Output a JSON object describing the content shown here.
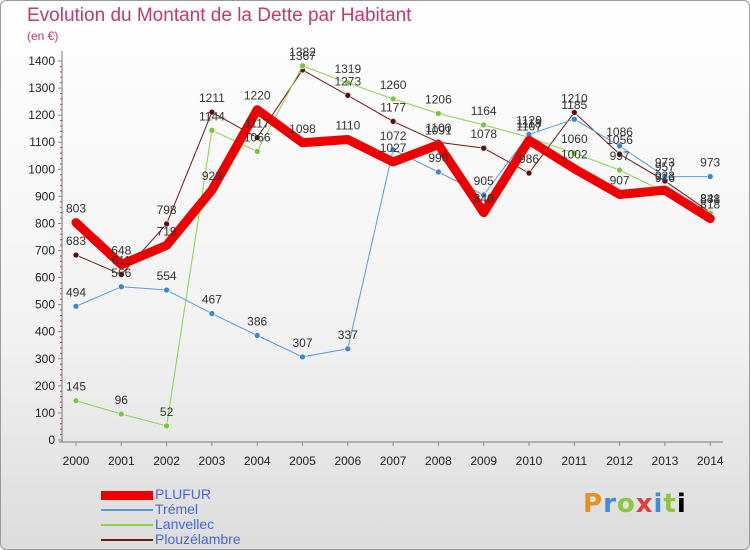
{
  "title": "Evolution du Montant de la Dette par Habitant",
  "subtitle": "(en €)",
  "brand": [
    "P",
    "r",
    "o",
    "x",
    "i",
    "t",
    "i"
  ],
  "chart_data": {
    "type": "line",
    "title": "Evolution du Montant de la Dette par Habitant",
    "subtitle": "(en €)",
    "x": [
      "2000",
      "2001",
      "2002",
      "2003",
      "2004",
      "2005",
      "2006",
      "2007",
      "2008",
      "2009",
      "2010",
      "2011",
      "2012",
      "2013",
      "2014"
    ],
    "ylim": [
      0,
      1400
    ],
    "yticks": [
      0,
      100,
      200,
      300,
      400,
      500,
      600,
      700,
      800,
      900,
      1000,
      1100,
      1200,
      1300,
      1400
    ],
    "grid": false,
    "legend": "bottom-left",
    "series": [
      {
        "name": "Plouzélambre",
        "color": "#6b1a1a",
        "width": 1,
        "values": [
          683,
          611,
          798,
          1211,
          1117,
          1367,
          1273,
          1177,
          1100,
          1078,
          986,
          1210,
          1056,
          957,
          841
        ]
      },
      {
        "name": "Lanvellec",
        "color": "#8cd04c",
        "width": 1,
        "values": [
          145,
          96,
          52,
          1144,
          1066,
          1382,
          1319,
          1260,
          1206,
          1164,
          1118,
          1060,
          997,
          916,
          838
        ]
      },
      {
        "name": "Trémel",
        "color": "#5c9ad6",
        "width": 1,
        "values": [
          494,
          566,
          554,
          467,
          386,
          307,
          337,
          1072,
          990,
          905,
          1129,
          1185,
          1086,
          973,
          973
        ]
      },
      {
        "name": "PLUFUR",
        "color": "#ee0000",
        "width": 9,
        "values": [
          803,
          648,
          719,
          923,
          1220,
          1098,
          1110,
          1027,
          1091,
          840,
          1107,
          1002,
          907,
          923,
          818
        ]
      }
    ]
  },
  "legend_order": [
    "PLUFUR",
    "Trémel",
    "Lanvellec",
    "Plouzélambre"
  ]
}
